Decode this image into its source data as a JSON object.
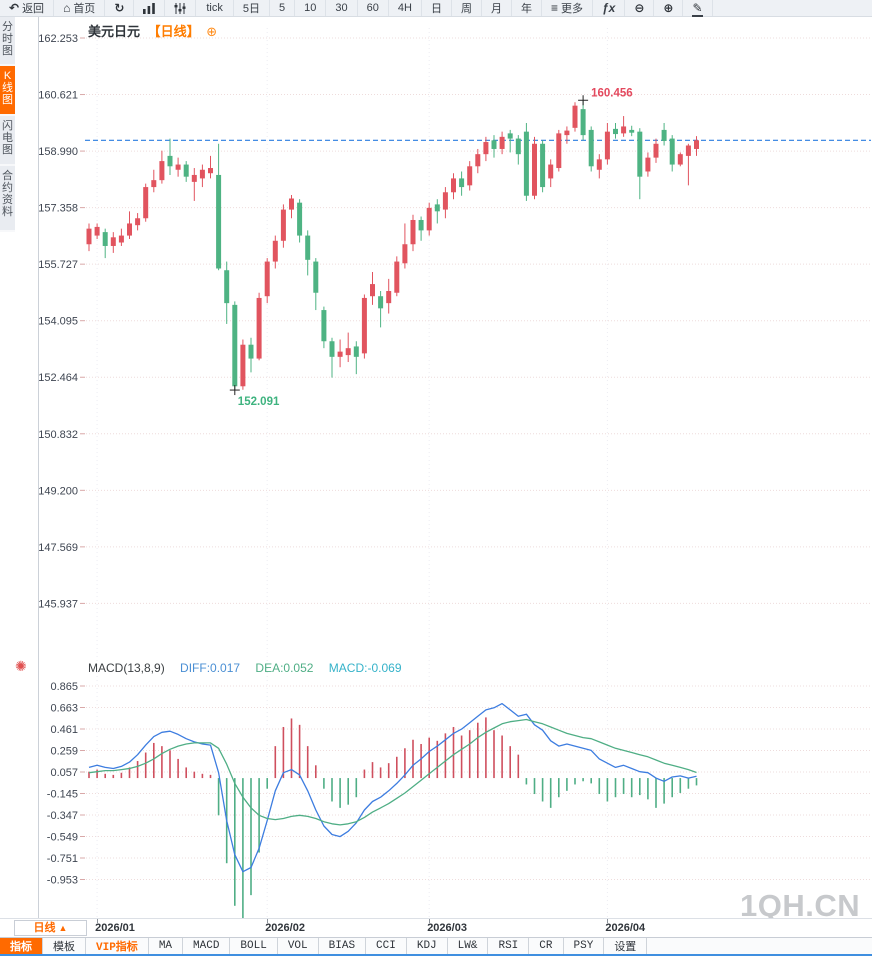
{
  "toolbar": {
    "items": [
      {
        "id": "back",
        "icon": "undo-arrow",
        "label": "返回"
      },
      {
        "id": "home",
        "icon": "house",
        "label": "首页"
      },
      {
        "id": "refresh",
        "icon": "refresh-arrow",
        "label": ""
      },
      {
        "id": "chart-bars",
        "icon": "bar-chart",
        "label": ""
      },
      {
        "id": "indicator-sliders",
        "icon": "sliders",
        "label": ""
      },
      {
        "id": "tick",
        "icon": "",
        "label": "tick"
      },
      {
        "id": "period-5d",
        "icon": "",
        "label": "5日"
      },
      {
        "id": "period-5",
        "icon": "",
        "label": "5"
      },
      {
        "id": "period-10",
        "icon": "",
        "label": "10"
      },
      {
        "id": "period-30",
        "icon": "",
        "label": "30"
      },
      {
        "id": "period-60",
        "icon": "",
        "label": "60"
      },
      {
        "id": "period-4h",
        "icon": "",
        "label": "4H"
      },
      {
        "id": "period-day",
        "icon": "",
        "label": "日"
      },
      {
        "id": "period-week",
        "icon": "",
        "label": "周"
      },
      {
        "id": "period-month",
        "icon": "",
        "label": "月"
      },
      {
        "id": "period-year",
        "icon": "",
        "label": "年"
      },
      {
        "id": "more",
        "icon": "menu",
        "label": "更多"
      },
      {
        "id": "fx",
        "icon": "",
        "label": "ƒx"
      },
      {
        "id": "zoom-out",
        "icon": "circle-minus",
        "label": ""
      },
      {
        "id": "zoom-in",
        "icon": "circle-plus",
        "label": ""
      },
      {
        "id": "draw",
        "icon": "pencil",
        "label": ""
      }
    ]
  },
  "sidebar": {
    "tabs": [
      {
        "id": "time-chart",
        "label": "分时图",
        "active": false
      },
      {
        "id": "kline-chart",
        "label": "K线图",
        "active": true
      },
      {
        "id": "flash-chart",
        "label": "闪电图",
        "active": false
      },
      {
        "id": "contract-info",
        "label": "合约资料",
        "active": false
      }
    ]
  },
  "chart_header": {
    "symbol": "美元日元",
    "period_tag": "【日线】",
    "plus": "⊕"
  },
  "macd_header": {
    "name": "MACD(13,8,9)",
    "diff_label": "DIFF:0.017",
    "dea_label": "DEA:0.052",
    "macd_label": "MACD:-0.069"
  },
  "bottom_axis": {
    "period_label": "日线",
    "period_arrow": "▲"
  },
  "indicator_bar": {
    "items": [
      {
        "id": "indicator",
        "label": "指标",
        "active": true,
        "vip": false
      },
      {
        "id": "template",
        "label": "模板",
        "active": false,
        "vip": false
      },
      {
        "id": "vip-indicator",
        "label": "VIP指标",
        "active": false,
        "vip": true
      },
      {
        "id": "ma",
        "label": "MA",
        "active": false,
        "vip": false
      },
      {
        "id": "macd",
        "label": "MACD",
        "active": false,
        "vip": false
      },
      {
        "id": "boll",
        "label": "BOLL",
        "active": false,
        "vip": false
      },
      {
        "id": "vol",
        "label": "VOL",
        "active": false,
        "vip": false
      },
      {
        "id": "bias",
        "label": "BIAS",
        "active": false,
        "vip": false
      },
      {
        "id": "cci",
        "label": "CCI",
        "active": false,
        "vip": false
      },
      {
        "id": "kdj",
        "label": "KDJ",
        "active": false,
        "vip": false
      },
      {
        "id": "lwr",
        "label": "LW&",
        "active": false,
        "vip": false
      },
      {
        "id": "rsi",
        "label": "RSI",
        "active": false,
        "vip": false
      },
      {
        "id": "cr",
        "label": "CR",
        "active": false,
        "vip": false
      },
      {
        "id": "psy",
        "label": "PSY",
        "active": false,
        "vip": false
      },
      {
        "id": "settings",
        "label": "设置",
        "active": false,
        "vip": false
      }
    ]
  },
  "watermark": "1QH.CN",
  "chart_data": {
    "type": "candlestick-with-macd",
    "title": "美元日元 日线",
    "price_axis": {
      "labels": [
        "162.253",
        "160.621",
        "158.990",
        "157.358",
        "155.727",
        "154.095",
        "152.464",
        "150.832",
        "149.200",
        "147.569",
        "145.937"
      ]
    },
    "macd_axis": {
      "labels": [
        "0.865",
        "0.663",
        "0.461",
        "0.259",
        "0.057",
        "-0.145",
        "-0.347",
        "-0.549",
        "-0.751",
        "-0.953"
      ]
    },
    "months": [
      {
        "label": "2026/01",
        "candle_index": 1
      },
      {
        "label": "2026/02",
        "candle_index": 22
      },
      {
        "label": "2026/03",
        "candle_index": 42
      },
      {
        "label": "2026/04",
        "candle_index": 64
      }
    ],
    "last_price": 159.3,
    "high_annotation": {
      "index": 61,
      "price": 160.456,
      "text": "160.456"
    },
    "low_annotation": {
      "index": 18,
      "price": 152.091,
      "text": "152.091"
    },
    "colors": {
      "up": "#e1545f",
      "down": "#4eb383",
      "hist_up": "#cf4f5e",
      "hist_down": "#4fae85",
      "diff_line": "#3d7de0",
      "dea_line": "#4fae85",
      "last_price_line": "#2a7de0",
      "accent": "#ff6a00",
      "grid": "#eedcdc",
      "axis_text": "#3e4551",
      "tick": "#d9a8a8"
    },
    "candles": [
      [
        156.3,
        156.9,
        156.1,
        156.75
      ],
      [
        156.55,
        156.9,
        156.45,
        156.8
      ],
      [
        156.65,
        156.75,
        155.9,
        156.25
      ],
      [
        156.25,
        156.65,
        156.05,
        156.5
      ],
      [
        156.35,
        156.75,
        156.25,
        156.55
      ],
      [
        156.55,
        157.25,
        156.45,
        156.9
      ],
      [
        156.85,
        157.2,
        156.7,
        157.05
      ],
      [
        157.05,
        158.05,
        156.95,
        157.95
      ],
      [
        157.95,
        158.45,
        157.8,
        158.15
      ],
      [
        158.15,
        159.0,
        158.05,
        158.7
      ],
      [
        158.85,
        159.35,
        158.3,
        158.55
      ],
      [
        158.45,
        158.8,
        158.25,
        158.6
      ],
      [
        158.6,
        158.7,
        158.1,
        158.25
      ],
      [
        158.1,
        158.5,
        157.55,
        158.3
      ],
      [
        158.2,
        158.6,
        157.95,
        158.45
      ],
      [
        158.35,
        158.85,
        158.2,
        158.5
      ],
      [
        158.3,
        159.2,
        155.55,
        155.6
      ],
      [
        155.55,
        155.8,
        154.0,
        154.6
      ],
      [
        154.55,
        154.65,
        152.091,
        152.2
      ],
      [
        152.2,
        153.55,
        152.1,
        153.4
      ],
      [
        153.4,
        153.6,
        152.6,
        153.0
      ],
      [
        153.0,
        154.9,
        152.95,
        154.75
      ],
      [
        154.8,
        155.9,
        154.6,
        155.8
      ],
      [
        155.8,
        156.55,
        155.6,
        156.4
      ],
      [
        156.4,
        157.45,
        156.2,
        157.3
      ],
      [
        157.3,
        157.72,
        157.05,
        157.62
      ],
      [
        157.5,
        157.6,
        156.35,
        156.55
      ],
      [
        156.55,
        156.7,
        155.4,
        155.85
      ],
      [
        155.8,
        155.9,
        154.4,
        154.9
      ],
      [
        154.4,
        154.5,
        153.3,
        153.5
      ],
      [
        153.5,
        153.6,
        152.45,
        153.05
      ],
      [
        153.05,
        153.55,
        152.75,
        153.2
      ],
      [
        153.1,
        153.75,
        152.9,
        153.3
      ],
      [
        153.35,
        153.5,
        152.55,
        153.05
      ],
      [
        153.15,
        154.85,
        153.0,
        154.75
      ],
      [
        154.8,
        155.5,
        154.55,
        155.15
      ],
      [
        154.8,
        154.95,
        153.9,
        154.45
      ],
      [
        154.6,
        155.3,
        154.3,
        154.95
      ],
      [
        154.9,
        155.95,
        154.8,
        155.8
      ],
      [
        155.75,
        156.9,
        155.6,
        156.3
      ],
      [
        156.3,
        157.15,
        156.1,
        157.0
      ],
      [
        157.0,
        157.1,
        156.4,
        156.7
      ],
      [
        156.7,
        157.5,
        156.55,
        157.35
      ],
      [
        157.45,
        157.6,
        156.9,
        157.25
      ],
      [
        157.3,
        157.95,
        157.05,
        157.8
      ],
      [
        157.8,
        158.35,
        157.6,
        158.2
      ],
      [
        158.2,
        158.4,
        157.7,
        157.95
      ],
      [
        158.0,
        158.7,
        157.85,
        158.55
      ],
      [
        158.55,
        159.05,
        158.35,
        158.9
      ],
      [
        158.9,
        159.4,
        158.7,
        159.25
      ],
      [
        159.3,
        159.45,
        158.8,
        159.05
      ],
      [
        159.05,
        159.55,
        158.9,
        159.4
      ],
      [
        159.5,
        159.6,
        158.95,
        159.35
      ],
      [
        159.35,
        159.45,
        158.6,
        158.9
      ],
      [
        159.55,
        159.8,
        157.55,
        157.7
      ],
      [
        157.7,
        159.4,
        157.6,
        159.2
      ],
      [
        159.2,
        159.3,
        157.8,
        157.95
      ],
      [
        158.2,
        158.75,
        157.95,
        158.6
      ],
      [
        158.5,
        159.6,
        158.4,
        159.5
      ],
      [
        159.45,
        159.7,
        159.2,
        159.58
      ],
      [
        159.66,
        160.4,
        159.55,
        160.3
      ],
      [
        160.2,
        160.456,
        159.3,
        159.45
      ],
      [
        159.6,
        159.7,
        158.4,
        158.55
      ],
      [
        158.45,
        158.9,
        158.2,
        158.75
      ],
      [
        158.75,
        159.8,
        158.6,
        159.55
      ],
      [
        159.63,
        159.8,
        159.35,
        159.48
      ],
      [
        159.5,
        160.0,
        159.4,
        159.7
      ],
      [
        159.6,
        159.72,
        159.42,
        159.52
      ],
      [
        159.55,
        159.65,
        157.6,
        158.25
      ],
      [
        158.4,
        158.95,
        158.25,
        158.8
      ],
      [
        158.8,
        159.35,
        158.65,
        159.2
      ],
      [
        159.6,
        159.8,
        159.15,
        159.28
      ],
      [
        159.35,
        159.45,
        158.4,
        158.6
      ],
      [
        158.6,
        158.95,
        158.55,
        158.9
      ],
      [
        158.85,
        159.2,
        158.0,
        159.15
      ],
      [
        159.05,
        159.42,
        158.85,
        159.3
      ]
    ],
    "macd": {
      "diff": [
        0.1,
        0.12,
        0.1,
        0.09,
        0.11,
        0.15,
        0.22,
        0.31,
        0.39,
        0.43,
        0.44,
        0.41,
        0.37,
        0.34,
        0.32,
        0.31,
        0.05,
        -0.4,
        -0.72,
        -0.88,
        -0.84,
        -0.66,
        -0.4,
        -0.12,
        0.05,
        0.08,
        0.03,
        -0.12,
        -0.3,
        -0.45,
        -0.53,
        -0.55,
        -0.5,
        -0.42,
        -0.3,
        -0.22,
        -0.18,
        -0.12,
        -0.05,
        0.03,
        0.12,
        0.18,
        0.25,
        0.3,
        0.36,
        0.42,
        0.46,
        0.52,
        0.58,
        0.64,
        0.66,
        0.7,
        0.64,
        0.58,
        0.6,
        0.5,
        0.45,
        0.35,
        0.3,
        0.32,
        0.3,
        0.28,
        0.26,
        0.18,
        0.14,
        0.1,
        0.12,
        0.09,
        0.06,
        0.05,
        0.0,
        -0.03,
        0.01,
        0.02,
        0.0,
        0.017
      ],
      "dea": [
        0.05,
        0.06,
        0.07,
        0.07,
        0.08,
        0.09,
        0.11,
        0.14,
        0.18,
        0.23,
        0.27,
        0.3,
        0.32,
        0.33,
        0.33,
        0.33,
        0.28,
        0.13,
        -0.05,
        -0.18,
        -0.28,
        -0.35,
        -0.38,
        -0.39,
        -0.38,
        -0.36,
        -0.35,
        -0.36,
        -0.38,
        -0.41,
        -0.43,
        -0.44,
        -0.43,
        -0.41,
        -0.37,
        -0.32,
        -0.28,
        -0.24,
        -0.19,
        -0.14,
        -0.08,
        -0.02,
        0.04,
        0.1,
        0.16,
        0.22,
        0.27,
        0.32,
        0.38,
        0.43,
        0.47,
        0.51,
        0.53,
        0.54,
        0.55,
        0.53,
        0.51,
        0.48,
        0.45,
        0.42,
        0.4,
        0.38,
        0.37,
        0.34,
        0.31,
        0.28,
        0.26,
        0.24,
        0.22,
        0.2,
        0.17,
        0.14,
        0.12,
        0.1,
        0.08,
        0.052
      ],
      "hist": [
        0.06,
        0.08,
        0.04,
        0.03,
        0.05,
        0.1,
        0.16,
        0.24,
        0.33,
        0.3,
        0.26,
        0.18,
        0.1,
        0.06,
        0.04,
        0.03,
        -0.35,
        -0.8,
        -1.2,
        -1.4,
        -1.1,
        -0.7,
        -0.1,
        0.3,
        0.48,
        0.56,
        0.5,
        0.3,
        0.12,
        -0.1,
        -0.22,
        -0.28,
        -0.25,
        -0.18,
        0.08,
        0.15,
        0.1,
        0.14,
        0.2,
        0.28,
        0.36,
        0.32,
        0.38,
        0.35,
        0.42,
        0.48,
        0.4,
        0.45,
        0.52,
        0.57,
        0.45,
        0.4,
        0.3,
        0.22,
        -0.06,
        -0.15,
        -0.22,
        -0.28,
        -0.18,
        -0.12,
        -0.06,
        -0.03,
        -0.05,
        -0.15,
        -0.22,
        -0.18,
        -0.15,
        -0.18,
        -0.16,
        -0.2,
        -0.28,
        -0.24,
        -0.18,
        -0.14,
        -0.1,
        -0.069
      ]
    }
  }
}
